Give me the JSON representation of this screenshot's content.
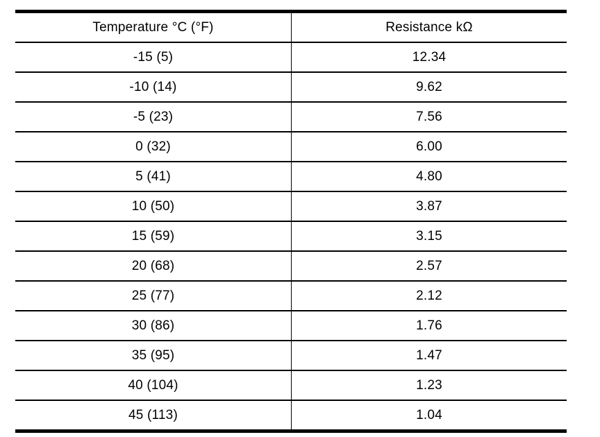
{
  "table": {
    "columns": [
      {
        "label": "Temperature °C (°F)"
      },
      {
        "label": "Resistance kΩ"
      }
    ],
    "rows": [
      {
        "temperature": "-15 (5)",
        "resistance": "12.34"
      },
      {
        "temperature": "-10 (14)",
        "resistance": "9.62"
      },
      {
        "temperature": "-5 (23)",
        "resistance": "7.56"
      },
      {
        "temperature": "0 (32)",
        "resistance": "6.00"
      },
      {
        "temperature": "5 (41)",
        "resistance": "4.80"
      },
      {
        "temperature": "10 (50)",
        "resistance": "3.87"
      },
      {
        "temperature": "15 (59)",
        "resistance": "3.15"
      },
      {
        "temperature": "20 (68)",
        "resistance": "2.57"
      },
      {
        "temperature": "25 (77)",
        "resistance": "2.12"
      },
      {
        "temperature": "30 (86)",
        "resistance": "1.76"
      },
      {
        "temperature": "35 (95)",
        "resistance": "1.47"
      },
      {
        "temperature": "40 (104)",
        "resistance": "1.23"
      },
      {
        "temperature": "45 (113)",
        "resistance": "1.04"
      }
    ],
    "border_color": "#000000",
    "background_color": "#ffffff",
    "text_color": "#000000"
  }
}
